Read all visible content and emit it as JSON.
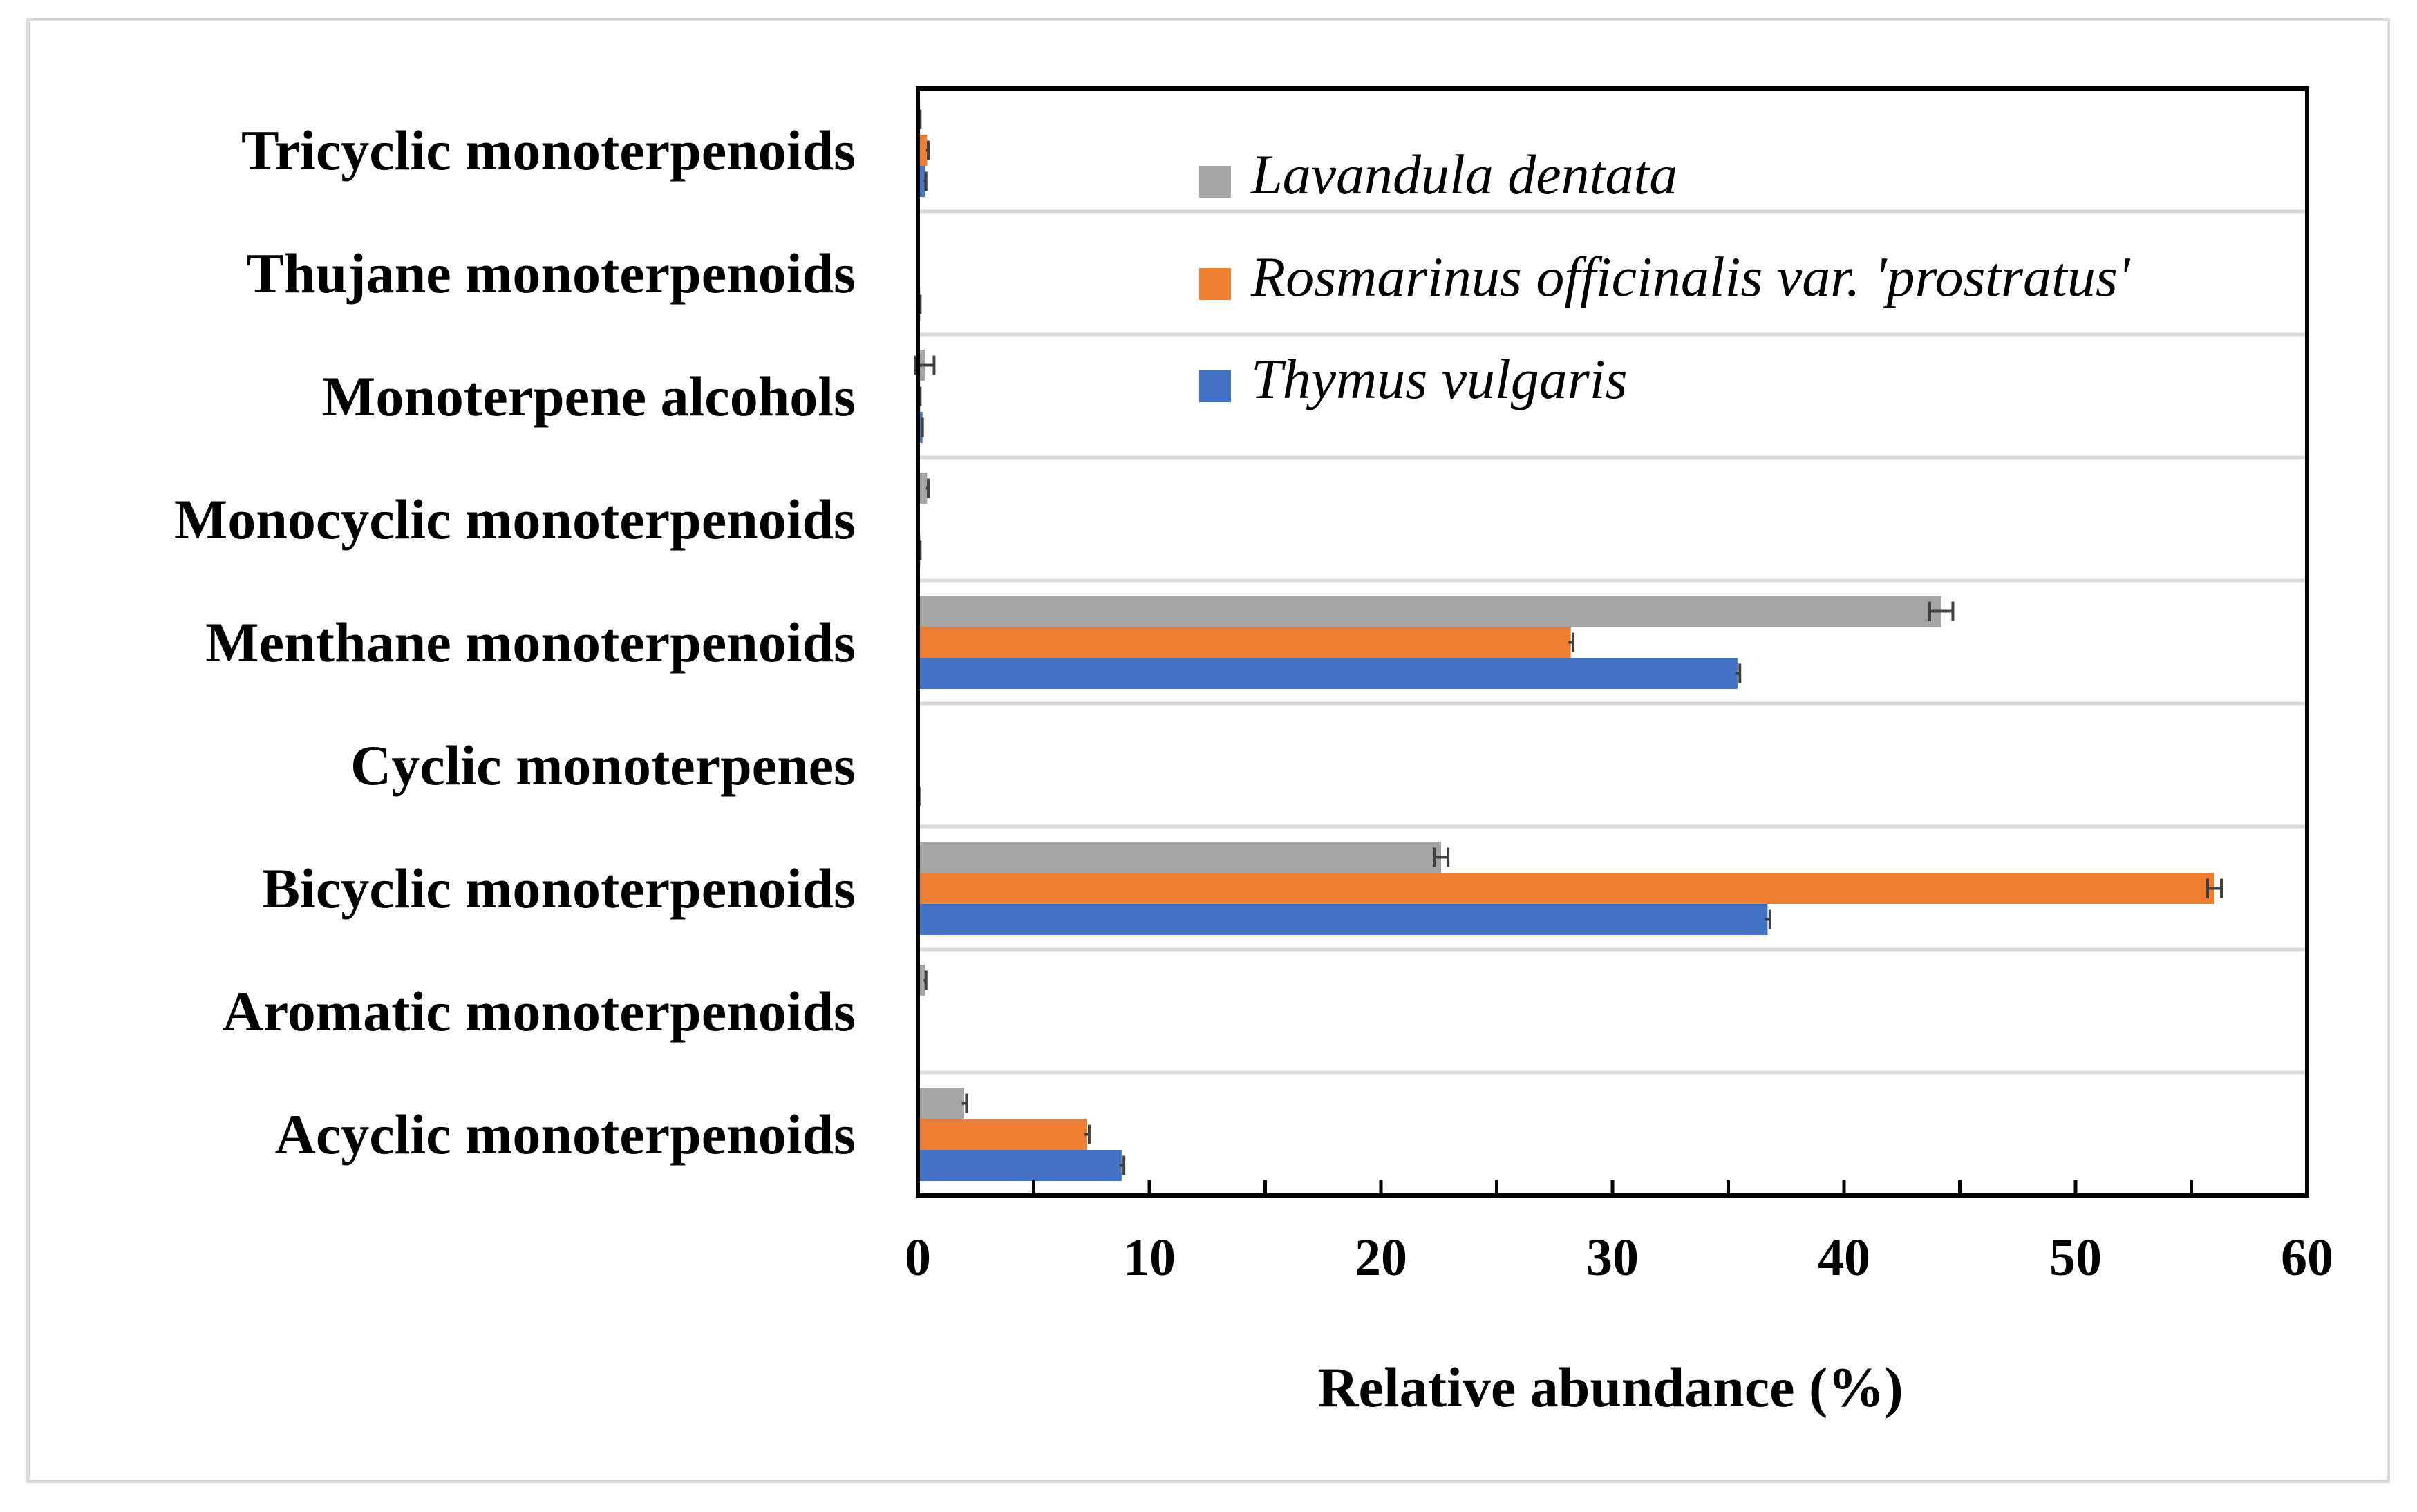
{
  "chart_data": {
    "type": "bar",
    "orientation": "horizontal",
    "title": "",
    "xlabel": "Relative abundance (%)",
    "ylabel": "",
    "xlim": [
      0,
      60
    ],
    "x_ticks": [
      0,
      10,
      20,
      30,
      40,
      50,
      60
    ],
    "grid": "horizontal lines between categories",
    "legend_position": "top-right",
    "categories": [
      "Acyclic monoterpenoids",
      "Aromatic monoterpenoids",
      "Bicyclic monoterpenoids",
      "Cyclic monoterpenes",
      "Menthane monoterpenoids",
      "Monocyclic monoterpenoids",
      "Monoterpene alcohols",
      "Thujane monoterpenoids",
      "Tricyclic monoterpenoids"
    ],
    "series": [
      {
        "name": "Lavandula dentata",
        "color": "#a5a5a5",
        "values": [
          2.0,
          0.3,
          22.6,
          0,
          44.2,
          0.4,
          0.3,
          0,
          0.1
        ],
        "errors": [
          0.1,
          0.05,
          0.3,
          0,
          0.5,
          0.05,
          0.4,
          0,
          0
        ]
      },
      {
        "name": "Rosmarinus officinalis var. 'prostratus'",
        "color": "#ed7d31",
        "values": [
          7.3,
          0,
          56.0,
          0,
          28.2,
          0,
          0.1,
          0,
          0.4
        ],
        "errors": [
          0.1,
          0,
          0.3,
          0,
          0.1,
          0,
          0,
          0,
          0.05
        ]
      },
      {
        "name": "Thymus vulgaris",
        "color": "#4472c4",
        "values": [
          8.8,
          0,
          36.7,
          0.05,
          35.4,
          0.1,
          0.2,
          0.1,
          0.3
        ],
        "errors": [
          0.1,
          0,
          0.1,
          0,
          0.1,
          0,
          0,
          0,
          0.05
        ]
      }
    ]
  }
}
